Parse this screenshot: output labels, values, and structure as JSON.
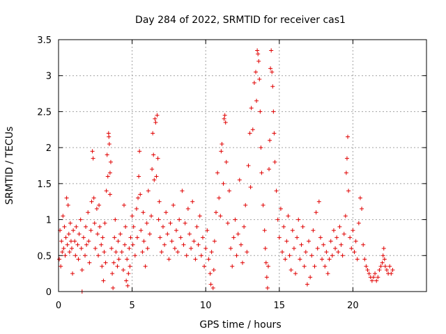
{
  "chart_data": {
    "type": "scatter",
    "title": "Day 284 of 2022, SRMTID for receiver cas1",
    "xlabel": "GPS time / hours",
    "ylabel": "SRMTID / TECUs",
    "xlim": [
      0,
      25
    ],
    "ylim": [
      0,
      3.5
    ],
    "x_ticks": [
      0,
      5,
      10,
      15,
      20
    ],
    "x_tick_labels": [
      "0",
      "5",
      "10",
      "15",
      "20"
    ],
    "y_ticks": [
      0,
      0.5,
      1,
      1.5,
      2,
      2.5,
      3,
      3.5
    ],
    "y_tick_labels": [
      "0",
      "0.5",
      "1",
      "1.5",
      "2",
      "2.5",
      "3",
      "3.5"
    ],
    "grid": true,
    "marker": "+",
    "marker_color": "#e00000",
    "series": [
      {
        "name": "cas1",
        "points": [
          [
            0.05,
            0.45
          ],
          [
            0.1,
            0.85
          ],
          [
            0.15,
            0.35
          ],
          [
            0.2,
            0.7
          ],
          [
            0.25,
            0.55
          ],
          [
            0.3,
            1.05
          ],
          [
            0.35,
            0.6
          ],
          [
            0.4,
            0.9
          ],
          [
            0.45,
            0.5
          ],
          [
            0.5,
            0.75
          ],
          [
            0.55,
            1.3
          ],
          [
            0.6,
            0.65
          ],
          [
            0.65,
            1.2
          ],
          [
            0.7,
            0.8
          ],
          [
            0.75,
            0.55
          ],
          [
            0.8,
            0.95
          ],
          [
            0.85,
            0.7
          ],
          [
            0.9,
            0.6
          ],
          [
            0.95,
            0.25
          ],
          [
            1.0,
            0.85
          ],
          [
            1.1,
            0.7
          ],
          [
            1.15,
            0.5
          ],
          [
            1.2,
            0.9
          ],
          [
            1.3,
            0.65
          ],
          [
            1.35,
            0.45
          ],
          [
            1.4,
            0.8
          ],
          [
            1.5,
            1.0
          ],
          [
            1.55,
            0.6
          ],
          [
            1.6,
            0.3
          ],
          [
            1.6,
            0.0
          ],
          [
            1.7,
            0.75
          ],
          [
            1.8,
            0.5
          ],
          [
            1.85,
            0.9
          ],
          [
            1.9,
            0.65
          ],
          [
            2.0,
            1.1
          ],
          [
            2.05,
            0.7
          ],
          [
            2.1,
            0.4
          ],
          [
            2.2,
            0.85
          ],
          [
            2.25,
            1.25
          ],
          [
            2.3,
            1.95
          ],
          [
            2.35,
            1.85
          ],
          [
            2.4,
            1.3
          ],
          [
            2.45,
            0.95
          ],
          [
            2.5,
            0.6
          ],
          [
            2.6,
            1.15
          ],
          [
            2.65,
            0.8
          ],
          [
            2.7,
            0.5
          ],
          [
            2.75,
            1.2
          ],
          [
            2.8,
            0.9
          ],
          [
            2.9,
            0.65
          ],
          [
            2.95,
            0.35
          ],
          [
            3.0,
            0.75
          ],
          [
            3.05,
            0.15
          ],
          [
            3.1,
            0.55
          ],
          [
            3.15,
            0.95
          ],
          [
            3.2,
            0.4
          ],
          [
            3.25,
            1.4
          ],
          [
            3.3,
            1.9
          ],
          [
            3.35,
            1.6
          ],
          [
            3.4,
            2.2
          ],
          [
            3.42,
            2.15
          ],
          [
            3.45,
            2.05
          ],
          [
            3.5,
            1.35
          ],
          [
            3.5,
            1.65
          ],
          [
            3.55,
            1.8
          ],
          [
            3.6,
            0.6
          ],
          [
            3.65,
            0.25
          ],
          [
            3.7,
            0.05
          ],
          [
            3.75,
            0.4
          ],
          [
            3.8,
            0.75
          ],
          [
            3.85,
            1.0
          ],
          [
            3.9,
            0.55
          ],
          [
            4.0,
            0.35
          ],
          [
            4.05,
            0.7
          ],
          [
            4.1,
            0.45
          ],
          [
            4.2,
            0.8
          ],
          [
            4.3,
            0.55
          ],
          [
            4.4,
            0.3
          ],
          [
            4.45,
            1.2
          ],
          [
            4.5,
            0.65
          ],
          [
            4.55,
            0.9
          ],
          [
            4.6,
            0.15
          ],
          [
            4.65,
            0.45
          ],
          [
            4.7,
            0.08
          ],
          [
            4.75,
            0.25
          ],
          [
            4.8,
            0.6
          ],
          [
            4.85,
            0.35
          ],
          [
            4.9,
            0.75
          ],
          [
            5.0,
            1.05
          ],
          [
            5.05,
            0.65
          ],
          [
            5.1,
            0.9
          ],
          [
            5.2,
            0.5
          ],
          [
            5.3,
            1.15
          ],
          [
            5.35,
            0.75
          ],
          [
            5.4,
            1.3
          ],
          [
            5.45,
            1.6
          ],
          [
            5.5,
            1.95
          ],
          [
            5.55,
            1.35
          ],
          [
            5.6,
            0.85
          ],
          [
            5.7,
            0.55
          ],
          [
            5.75,
            1.1
          ],
          [
            5.8,
            0.7
          ],
          [
            5.9,
            0.35
          ],
          [
            6.0,
            0.95
          ],
          [
            6.05,
            0.6
          ],
          [
            6.1,
            1.4
          ],
          [
            6.2,
            0.8
          ],
          [
            6.3,
            1.05
          ],
          [
            6.35,
            1.7
          ],
          [
            6.4,
            2.2
          ],
          [
            6.45,
            1.9
          ],
          [
            6.5,
            1.55
          ],
          [
            6.55,
            2.4
          ],
          [
            6.6,
            2.35
          ],
          [
            6.65,
            1.6
          ],
          [
            6.7,
            2.45
          ],
          [
            6.75,
            1.85
          ],
          [
            6.8,
            1.0
          ],
          [
            6.85,
            1.25
          ],
          [
            6.9,
            0.75
          ],
          [
            7.0,
            0.55
          ],
          [
            7.1,
            0.9
          ],
          [
            7.2,
            0.65
          ],
          [
            7.3,
            1.1
          ],
          [
            7.4,
            0.8
          ],
          [
            7.5,
            0.45
          ],
          [
            7.6,
            0.95
          ],
          [
            7.7,
            0.7
          ],
          [
            7.8,
            1.2
          ],
          [
            7.9,
            0.6
          ],
          [
            8.0,
            0.85
          ],
          [
            8.1,
            0.55
          ],
          [
            8.2,
            1.0
          ],
          [
            8.3,
            0.75
          ],
          [
            8.4,
            1.4
          ],
          [
            8.5,
            0.65
          ],
          [
            8.6,
            0.95
          ],
          [
            8.7,
            0.5
          ],
          [
            8.8,
            1.15
          ],
          [
            8.9,
            0.8
          ],
          [
            9.0,
            0.6
          ],
          [
            9.1,
            1.25
          ],
          [
            9.2,
            0.7
          ],
          [
            9.3,
            0.45
          ],
          [
            9.4,
            0.9
          ],
          [
            9.5,
            0.65
          ],
          [
            9.6,
            1.05
          ],
          [
            9.7,
            0.5
          ],
          [
            9.8,
            0.75
          ],
          [
            9.9,
            0.35
          ],
          [
            10.0,
            0.6
          ],
          [
            10.1,
            0.85
          ],
          [
            10.2,
            0.45
          ],
          [
            10.3,
            0.25
          ],
          [
            10.35,
            0.1
          ],
          [
            10.4,
            0.55
          ],
          [
            10.5,
            0.05
          ],
          [
            10.55,
            0.3
          ],
          [
            10.6,
            0.7
          ],
          [
            10.7,
            1.1
          ],
          [
            10.8,
            1.65
          ],
          [
            10.9,
            1.3
          ],
          [
            11.0,
            1.05
          ],
          [
            11.05,
            1.95
          ],
          [
            11.1,
            2.05
          ],
          [
            11.2,
            1.5
          ],
          [
            11.25,
            2.4
          ],
          [
            11.3,
            2.45
          ],
          [
            11.35,
            2.35
          ],
          [
            11.4,
            1.8
          ],
          [
            11.5,
            0.95
          ],
          [
            11.6,
            1.4
          ],
          [
            11.7,
            0.6
          ],
          [
            11.8,
            0.35
          ],
          [
            11.9,
            0.75
          ],
          [
            12.0,
            1.0
          ],
          [
            12.1,
            0.5
          ],
          [
            12.2,
            0.8
          ],
          [
            12.3,
            1.55
          ],
          [
            12.4,
            0.65
          ],
          [
            12.5,
            0.4
          ],
          [
            12.6,
            0.9
          ],
          [
            12.7,
            1.2
          ],
          [
            12.8,
            0.55
          ],
          [
            12.9,
            1.75
          ],
          [
            13.0,
            2.2
          ],
          [
            13.05,
            1.45
          ],
          [
            13.1,
            2.55
          ],
          [
            13.2,
            2.25
          ],
          [
            13.3,
            2.9
          ],
          [
            13.4,
            3.05
          ],
          [
            13.45,
            2.65
          ],
          [
            13.5,
            3.35
          ],
          [
            13.55,
            3.3
          ],
          [
            13.6,
            3.2
          ],
          [
            13.65,
            2.95
          ],
          [
            13.7,
            2.5
          ],
          [
            13.75,
            2.0
          ],
          [
            13.8,
            1.65
          ],
          [
            13.9,
            1.2
          ],
          [
            14.0,
            0.85
          ],
          [
            14.05,
            0.6
          ],
          [
            14.1,
            0.4
          ],
          [
            14.15,
            0.2
          ],
          [
            14.2,
            0.05
          ],
          [
            14.25,
            0.35
          ],
          [
            14.3,
            1.7
          ],
          [
            14.35,
            2.1
          ],
          [
            14.4,
            3.1
          ],
          [
            14.45,
            3.35
          ],
          [
            14.5,
            3.05
          ],
          [
            14.55,
            2.85
          ],
          [
            14.6,
            2.5
          ],
          [
            14.65,
            2.2
          ],
          [
            14.7,
            1.8
          ],
          [
            14.8,
            1.4
          ],
          [
            14.9,
            1.0
          ],
          [
            15.0,
            0.75
          ],
          [
            15.1,
            1.15
          ],
          [
            15.2,
            0.55
          ],
          [
            15.3,
            0.9
          ],
          [
            15.4,
            0.45
          ],
          [
            15.5,
            0.7
          ],
          [
            15.6,
            1.05
          ],
          [
            15.7,
            0.5
          ],
          [
            15.8,
            0.3
          ],
          [
            15.9,
            0.85
          ],
          [
            16.0,
            0.6
          ],
          [
            16.1,
            0.25
          ],
          [
            16.2,
            0.75
          ],
          [
            16.3,
            1.0
          ],
          [
            16.4,
            0.45
          ],
          [
            16.5,
            0.65
          ],
          [
            16.6,
            0.9
          ],
          [
            16.7,
            0.35
          ],
          [
            16.8,
            0.55
          ],
          [
            16.9,
            0.1
          ],
          [
            17.0,
            0.7
          ],
          [
            17.1,
            0.2
          ],
          [
            17.2,
            0.5
          ],
          [
            17.3,
            0.85
          ],
          [
            17.4,
            0.35
          ],
          [
            17.5,
            1.1
          ],
          [
            17.6,
            0.6
          ],
          [
            17.7,
            1.25
          ],
          [
            17.8,
            0.75
          ],
          [
            17.9,
            0.45
          ],
          [
            18.0,
            0.65
          ],
          [
            18.1,
            0.35
          ],
          [
            18.2,
            0.55
          ],
          [
            18.3,
            0.25
          ],
          [
            18.4,
            0.45
          ],
          [
            18.5,
            0.7
          ],
          [
            18.6,
            0.5
          ],
          [
            18.7,
            0.85
          ],
          [
            18.8,
            0.6
          ],
          [
            18.9,
            0.75
          ],
          [
            19.0,
            0.55
          ],
          [
            19.1,
            0.9
          ],
          [
            19.2,
            0.65
          ],
          [
            19.3,
            0.5
          ],
          [
            19.4,
            0.8
          ],
          [
            19.5,
            1.05
          ],
          [
            19.55,
            1.65
          ],
          [
            19.6,
            1.85
          ],
          [
            19.65,
            2.15
          ],
          [
            19.7,
            1.4
          ],
          [
            19.8,
            0.75
          ],
          [
            19.9,
            0.6
          ],
          [
            20.0,
            0.85
          ],
          [
            20.1,
            0.55
          ],
          [
            20.2,
            0.7
          ],
          [
            20.3,
            0.45
          ],
          [
            20.4,
            0.95
          ],
          [
            20.5,
            1.3
          ],
          [
            20.6,
            1.15
          ],
          [
            20.7,
            0.65
          ],
          [
            20.8,
            0.45
          ],
          [
            20.9,
            0.35
          ],
          [
            21.0,
            0.3
          ],
          [
            21.1,
            0.25
          ],
          [
            21.2,
            0.2
          ],
          [
            21.3,
            0.15
          ],
          [
            21.4,
            0.2
          ],
          [
            21.5,
            0.25
          ],
          [
            21.6,
            0.15
          ],
          [
            21.7,
            0.2
          ],
          [
            21.8,
            0.3
          ],
          [
            21.9,
            0.35
          ],
          [
            22.0,
            0.4
          ],
          [
            22.05,
            0.5
          ],
          [
            22.1,
            0.6
          ],
          [
            22.15,
            0.45
          ],
          [
            22.2,
            0.35
          ],
          [
            22.3,
            0.3
          ],
          [
            22.4,
            0.25
          ],
          [
            22.5,
            0.35
          ],
          [
            22.6,
            0.25
          ],
          [
            22.7,
            0.3
          ]
        ]
      }
    ]
  }
}
